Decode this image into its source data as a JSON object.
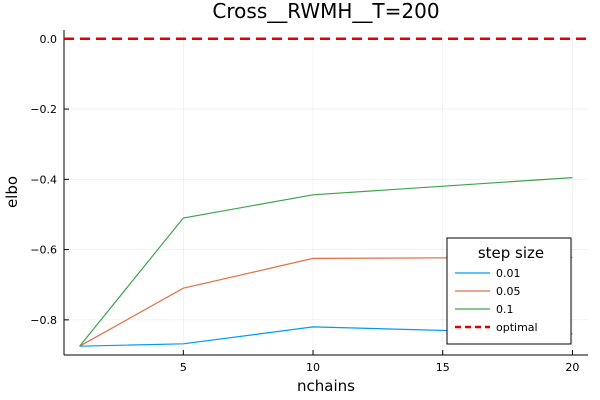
{
  "chart_data": {
    "type": "line",
    "title": "Cross__RWMH__T=200",
    "xlabel": "nchains",
    "ylabel": "elbo",
    "xlim": [
      0.4,
      20.6
    ],
    "ylim": [
      -0.9,
      0.025
    ],
    "xticks": [
      5,
      10,
      15,
      20
    ],
    "xtick_labels": [
      "5",
      "10",
      "15",
      "20"
    ],
    "yticks": [
      0.0,
      -0.2,
      -0.4,
      -0.6,
      -0.8
    ],
    "ytick_labels": [
      "0.0",
      "−0.2",
      "−0.4",
      "−0.6",
      "−0.8"
    ],
    "grid": true,
    "legend_title": "step size",
    "legend_position": "bottom-right",
    "x": [
      1,
      5,
      10,
      20
    ],
    "series": [
      {
        "name": "0.01",
        "color": "#009af9",
        "values": [
          -0.875,
          -0.868,
          -0.82,
          -0.84
        ]
      },
      {
        "name": "0.05",
        "color": "#e26f46",
        "values": [
          -0.875,
          -0.71,
          -0.625,
          -0.622
        ]
      },
      {
        "name": "0.1",
        "color": "#3da44d",
        "values": [
          -0.875,
          -0.51,
          -0.444,
          -0.395
        ]
      }
    ],
    "reference_line": {
      "name": "optimal",
      "value": 0.0,
      "color": "#e00000",
      "style": "dashed"
    }
  }
}
